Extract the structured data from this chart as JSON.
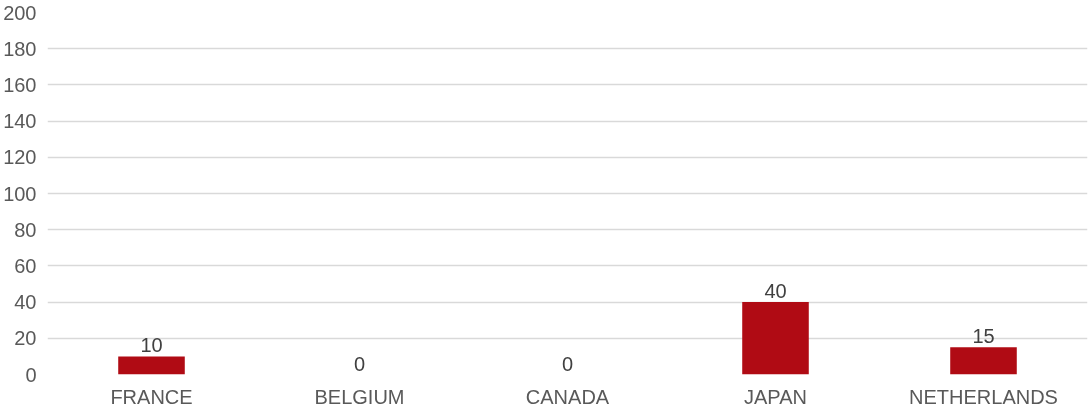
{
  "chart_data": {
    "type": "bar",
    "categories": [
      "FRANCE",
      "BELGIUM",
      "CANADA",
      "JAPAN",
      "NETHERLANDS"
    ],
    "values": [
      10,
      0,
      0,
      40,
      15
    ],
    "color": "#b00b14",
    "ylim": [
      0,
      200
    ],
    "yticks": [
      0,
      20,
      40,
      60,
      80,
      100,
      120,
      140,
      160,
      180,
      200
    ],
    "grid": "y",
    "data_labels": true
  }
}
